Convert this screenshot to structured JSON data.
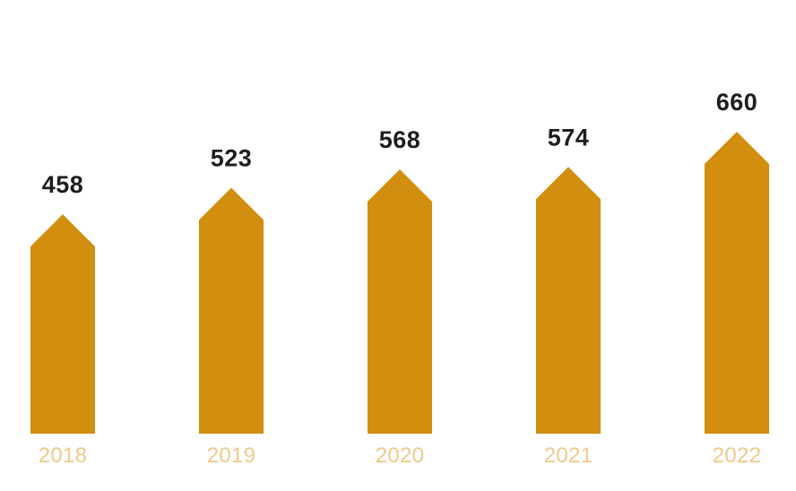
{
  "colors": {
    "bar": "#d18e0f",
    "tick_label": "#efc98a",
    "value_label": "#1e1e1e"
  },
  "chart_data": {
    "type": "bar",
    "bar_shape": "arrow-up",
    "categories": [
      "2018",
      "2019",
      "2020",
      "2021",
      "2022"
    ],
    "values": [
      458,
      523,
      568,
      574,
      660
    ],
    "data_labels": [
      "458",
      "523",
      "568",
      "574",
      "660"
    ],
    "title": "",
    "xlabel": "",
    "ylabel": "",
    "ylim": [
      0,
      700
    ],
    "grid": false,
    "legend": "none",
    "y_axis_visible": false
  }
}
